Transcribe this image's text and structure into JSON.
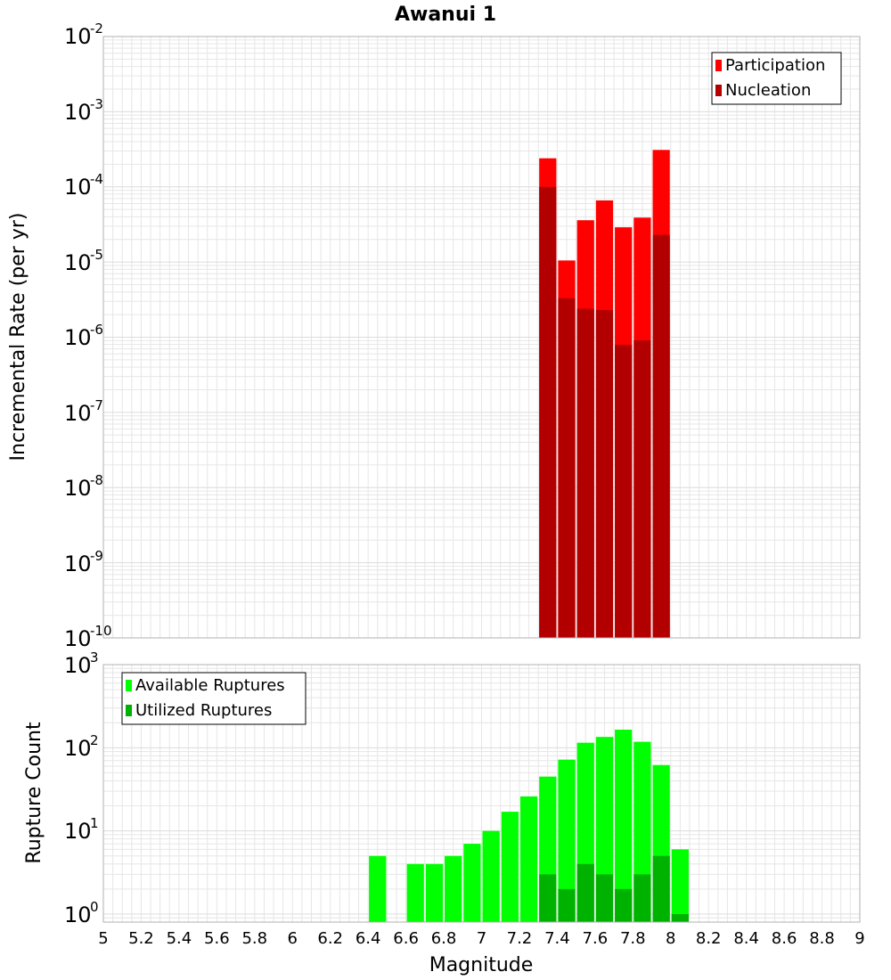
{
  "title": "Awanui 1",
  "colors": {
    "participation": "#ff0000",
    "nucleation": "#b20000",
    "available": "#00ff00",
    "utilized": "#00b200",
    "grid": "#e6e6e6",
    "frame": "#b0b0b0"
  },
  "chart_data": [
    {
      "type": "bar",
      "scale": "log",
      "ylabel": "Incremental Rate (per yr)",
      "ylim": [
        1e-10,
        0.01
      ],
      "xlim": [
        5,
        9
      ],
      "bin_width": 0.1,
      "ytick_exponents": [
        -10,
        -9,
        -8,
        -7,
        -6,
        -5,
        -4,
        -3,
        -2
      ],
      "legend": {
        "position": "top-right",
        "entries": [
          "Participation",
          "Nucleation"
        ]
      },
      "x": [
        7.35,
        7.45,
        7.55,
        7.65,
        7.75,
        7.85,
        7.95
      ],
      "series": [
        {
          "name": "Participation",
          "values": [
            0.00024,
            1.05e-05,
            3.6e-05,
            6.6e-05,
            2.9e-05,
            3.9e-05,
            0.00031
          ]
        },
        {
          "name": "Nucleation",
          "values": [
            0.0001,
            3.3e-06,
            2.4e-06,
            2.3e-06,
            7.9e-07,
            9.1e-07,
            2.3e-05
          ]
        }
      ]
    },
    {
      "type": "bar",
      "scale": "log",
      "ylabel": "Rupture Count",
      "xlabel": "Magnitude",
      "ylim": [
        0.8,
        1000
      ],
      "xlim": [
        5,
        9
      ],
      "bin_width": 0.1,
      "ytick_exponents": [
        0,
        1,
        2,
        3
      ],
      "xticks": [
        "5",
        "5.2",
        "5.4",
        "5.6",
        "5.8",
        "6",
        "6.2",
        "6.4",
        "6.6",
        "6.8",
        "7",
        "7.2",
        "7.4",
        "7.6",
        "7.8",
        "8",
        "8.2",
        "8.4",
        "8.6",
        "8.8",
        "9"
      ],
      "legend": {
        "position": "top-left",
        "entries": [
          "Available Ruptures",
          "Utilized Ruptures"
        ]
      },
      "x": [
        6.45,
        6.65,
        6.75,
        6.85,
        6.95,
        7.05,
        7.15,
        7.25,
        7.35,
        7.45,
        7.55,
        7.65,
        7.75,
        7.85,
        7.95,
        8.05
      ],
      "series": [
        {
          "name": "Available Ruptures",
          "values": [
            5,
            4,
            4,
            5,
            7,
            10,
            17,
            26,
            45,
            72,
            115,
            135,
            165,
            118,
            62,
            6
          ]
        },
        {
          "name": "Utilized Ruptures",
          "values": [
            null,
            null,
            null,
            null,
            null,
            null,
            null,
            null,
            3,
            2,
            4,
            3,
            2,
            3,
            5,
            1
          ]
        }
      ]
    }
  ]
}
